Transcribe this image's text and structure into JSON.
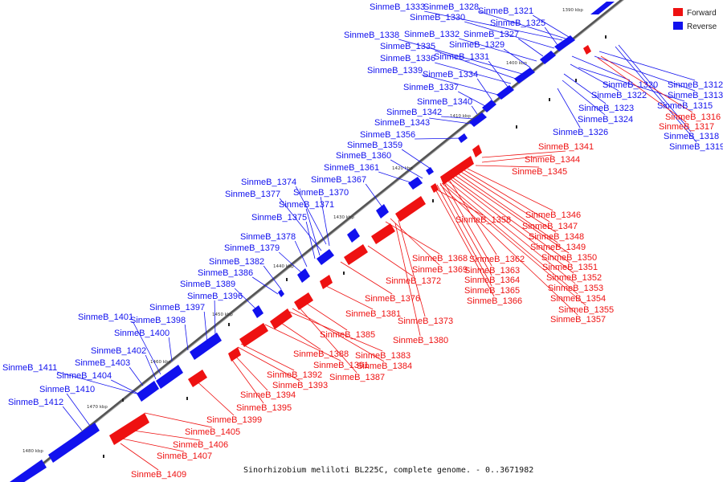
{
  "caption": "Sinorhizobium meliloti BL225C, complete genome. - 0..3671982",
  "legend": [
    {
      "label": "Forward",
      "color": "#ee1111"
    },
    {
      "label": "Reverse",
      "color": "#1111ee"
    }
  ],
  "colors": {
    "forward": "#ee1111",
    "reverse": "#1111ee",
    "axis": "#888888"
  },
  "ticks": [
    "1390 kbp",
    "1400 kbp",
    "1410 kbp",
    "1420 kbp",
    "1430 kbp",
    "1440 kbp",
    "1450 kbp",
    "1460 kbp",
    "1470 kbp",
    "1480 kbp"
  ],
  "reverse_labels": [
    "SinmeB_1333",
    "SinmeB_1328",
    "SinmeB_1321",
    "SinmeB_1330",
    "SinmeB_1325",
    "SinmeB_1338",
    "SinmeB_1332",
    "SinmeB_1327",
    "SinmeB_1335",
    "SinmeB_1329",
    "SinmeB_1336",
    "SinmeB_1331",
    "SinmeB_1339",
    "SinmeB_1334",
    "SinmeB_1337",
    "SinmeB_1340",
    "SinmeB_1342",
    "SinmeB_1343",
    "SinmeB_1356",
    "SinmeB_1359",
    "SinmeB_1360",
    "SinmeB_1361",
    "SinmeB_1367",
    "SinmeB_1374",
    "SinmeB_1377",
    "SinmeB_1370",
    "SinmeB_1371",
    "SinmeB_1375",
    "SinmeB_1378",
    "SinmeB_1379",
    "SinmeB_1382",
    "SinmeB_1386",
    "SinmeB_1389",
    "SinmeB_1396",
    "SinmeB_1397",
    "SinmeB_1401",
    "SinmeB_1398",
    "SinmeB_1400",
    "SinmeB_1402",
    "SinmeB_1403",
    "SinmeB_1411",
    "SinmeB_1404",
    "SinmeB_1410",
    "SinmeB_1412",
    "SinmeB_1320",
    "SinmeB_1312",
    "SinmeB_1322",
    "SinmeB_1313",
    "SinmeB_1315",
    "SinmeB_1323",
    "SinmeB_1324",
    "SinmeB_1326",
    "SinmeB_1318",
    "SinmeB_1319"
  ],
  "forward_labels": [
    "SinmeB_1316",
    "SinmeB_1317",
    "SinmeB_1341",
    "SinmeB_1344",
    "SinmeB_1345",
    "SinmeB_1346",
    "SinmeB_1347",
    "SinmeB_1358",
    "SinmeB_1348",
    "SinmeB_1349",
    "SinmeB_1368",
    "SinmeB_1362",
    "SinmeB_1350",
    "SinmeB_1369",
    "SinmeB_1363",
    "SinmeB_1351",
    "SinmeB_1372",
    "SinmeB_1364",
    "SinmeB_1352",
    "SinmeB_1365",
    "SinmeB_1353",
    "SinmeB_1376",
    "SinmeB_1366",
    "SinmeB_1354",
    "SinmeB_1381",
    "SinmeB_1355",
    "SinmeB_1373",
    "SinmeB_1357",
    "SinmeB_1385",
    "SinmeB_1380",
    "SinmeB_1388",
    "SinmeB_1383",
    "SinmeB_1391",
    "SinmeB_1384",
    "SinmeB_1392",
    "SinmeB_1387",
    "SinmeB_1393",
    "SinmeB_1394",
    "SinmeB_1395",
    "SinmeB_1399",
    "SinmeB_1405",
    "SinmeB_1406",
    "SinmeB_1407",
    "SinmeB_1409"
  ]
}
